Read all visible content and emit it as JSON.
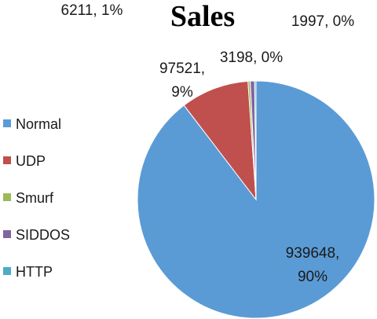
{
  "chart_data": {
    "type": "pie",
    "title": "Sales",
    "categories": [
      "Normal",
      "UDP",
      "Smurf",
      "SIDDOS",
      "HTTP"
    ],
    "values": [
      939648,
      97521,
      3198,
      6211,
      1997
    ],
    "percent_labels": [
      "90%",
      "9%",
      "0%",
      "1%",
      "0%"
    ],
    "data_labels": [
      [
        "939648,",
        "90%"
      ],
      [
        "97521,",
        "9%"
      ],
      [
        "3198, 0%"
      ],
      [
        "6211, 1%"
      ],
      [
        "1997, 0%"
      ]
    ],
    "colors": [
      "#5b9bd5",
      "#c0504d",
      "#9bbb59",
      "#8064a2",
      "#4bacc6"
    ],
    "legend_position": "left"
  }
}
